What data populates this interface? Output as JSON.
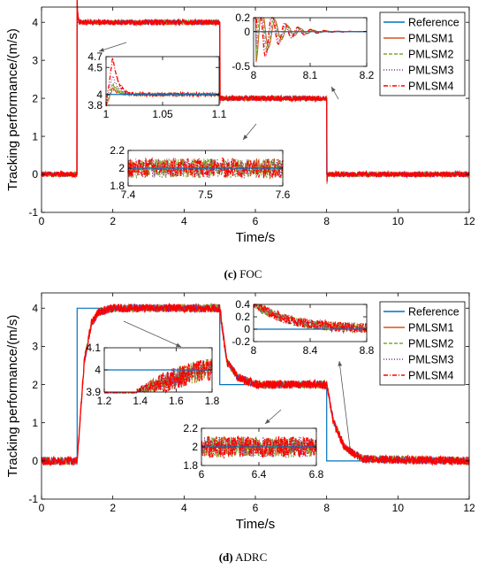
{
  "colors": {
    "Reference": "#0072BD",
    "PMLSM1": "#D95319",
    "PMLSM2": "#77AC30",
    "PMLSM3": "#7E2F8E",
    "PMLSM4": "#FF0000"
  },
  "chart_data": [
    {
      "panel": "c",
      "type": "line",
      "caption_letter": "(c)",
      "caption_text": "FOC",
      "xlabel": "Time/s",
      "ylabel": "Tracking performance/(m/s)",
      "xlim": [
        0,
        12
      ],
      "ylim": [
        -1,
        4.4
      ],
      "xticks": [
        0,
        2,
        4,
        6,
        8,
        10,
        12
      ],
      "yticks": [
        -1,
        0,
        1,
        2,
        3,
        4
      ],
      "grid": false,
      "legend": {
        "position": "top-right",
        "entries": [
          "Reference",
          "PMLSM1",
          "PMLSM2",
          "PMLSM3",
          "PMLSM4"
        ]
      },
      "series": [
        {
          "name": "Reference",
          "x": [
            0,
            1,
            1,
            5,
            5,
            8,
            8,
            12
          ],
          "y": [
            0,
            0,
            4,
            4,
            2,
            2,
            0,
            0
          ]
        },
        {
          "name": "PMLSM4",
          "x": [
            0,
            0.99,
            1.0,
            1.01,
            1.03,
            1.06,
            1.1,
            5,
            5.0,
            5.02,
            8,
            8.0,
            8.02,
            12
          ],
          "y": [
            0,
            0,
            4.7,
            4.3,
            4.1,
            4.0,
            4.0,
            4.0,
            1.85,
            2.0,
            2.0,
            -0.45,
            0.0,
            0.0
          ]
        }
      ],
      "insets": [
        {
          "xlim": [
            1,
            1.1
          ],
          "ylim": [
            3.8,
            4.7
          ],
          "xticks": [
            1,
            1.05,
            1.1
          ],
          "yticks": [
            3.8,
            4,
            4.5,
            4.7
          ],
          "ref": 4.0,
          "peaks": {
            "PMLSM4": 4.7,
            "PMLSM3": 4.35,
            "PMLSM2": 4.2,
            "PMLSM1": 4.12
          }
        },
        {
          "xlim": [
            7.4,
            7.6
          ],
          "ylim": [
            1.8,
            2.2
          ],
          "xticks": [
            7.4,
            7.5,
            7.6
          ],
          "yticks": [
            1.8,
            2,
            2.2
          ],
          "ref": 2.0
        },
        {
          "xlim": [
            8,
            8.2
          ],
          "ylim": [
            -0.5,
            0.2
          ],
          "xticks": [
            8,
            8.1,
            8.2
          ],
          "yticks": [
            -0.5,
            0,
            0.2
          ],
          "ref": 0.0
        }
      ]
    },
    {
      "panel": "d",
      "type": "line",
      "caption_letter": "(d)",
      "caption_text": "ADRC",
      "xlabel": "Time/s",
      "ylabel": "Tracking performance/(m/s)",
      "xlim": [
        0,
        12
      ],
      "ylim": [
        -1,
        4.4
      ],
      "xticks": [
        0,
        2,
        4,
        6,
        8,
        10,
        12
      ],
      "yticks": [
        -1,
        0,
        1,
        2,
        3,
        4
      ],
      "grid": false,
      "legend": {
        "position": "top-right",
        "entries": [
          "Reference",
          "PMLSM1",
          "PMLSM2",
          "PMLSM3",
          "PMLSM4"
        ]
      },
      "series": [
        {
          "name": "Reference",
          "x": [
            0,
            1,
            1,
            5,
            5,
            8,
            8,
            12
          ],
          "y": [
            0,
            0,
            4,
            4,
            2,
            2,
            0,
            0
          ]
        },
        {
          "name": "PMLSM4",
          "x": [
            0,
            1.0,
            1.2,
            1.4,
            1.6,
            2.0,
            5.0,
            5.2,
            5.5,
            6.0,
            8.0,
            8.2,
            8.5,
            9.0,
            12
          ],
          "y": [
            0,
            0,
            2.6,
            3.6,
            3.9,
            4.0,
            4.0,
            2.6,
            2.2,
            2.0,
            2.0,
            1.0,
            0.35,
            0.05,
            0.0
          ]
        }
      ],
      "insets": [
        {
          "xlim": [
            1.2,
            1.8
          ],
          "ylim": [
            3.9,
            4.1
          ],
          "xticks": [
            1.2,
            1.4,
            1.6,
            1.8
          ],
          "yticks": [
            3.9,
            4,
            4.1
          ],
          "ref": 4.0
        },
        {
          "xlim": [
            6,
            6.8
          ],
          "ylim": [
            1.8,
            2.2
          ],
          "xticks": [
            6,
            6.4,
            6.8
          ],
          "yticks": [
            1.8,
            2,
            2.2
          ],
          "ref": 2.0
        },
        {
          "xlim": [
            8,
            8.8
          ],
          "ylim": [
            -0.2,
            0.4
          ],
          "xticks": [
            8,
            8.4,
            8.8
          ],
          "yticks": [
            -0.2,
            0,
            0.2,
            0.4
          ],
          "ref": 0.0
        }
      ]
    }
  ]
}
